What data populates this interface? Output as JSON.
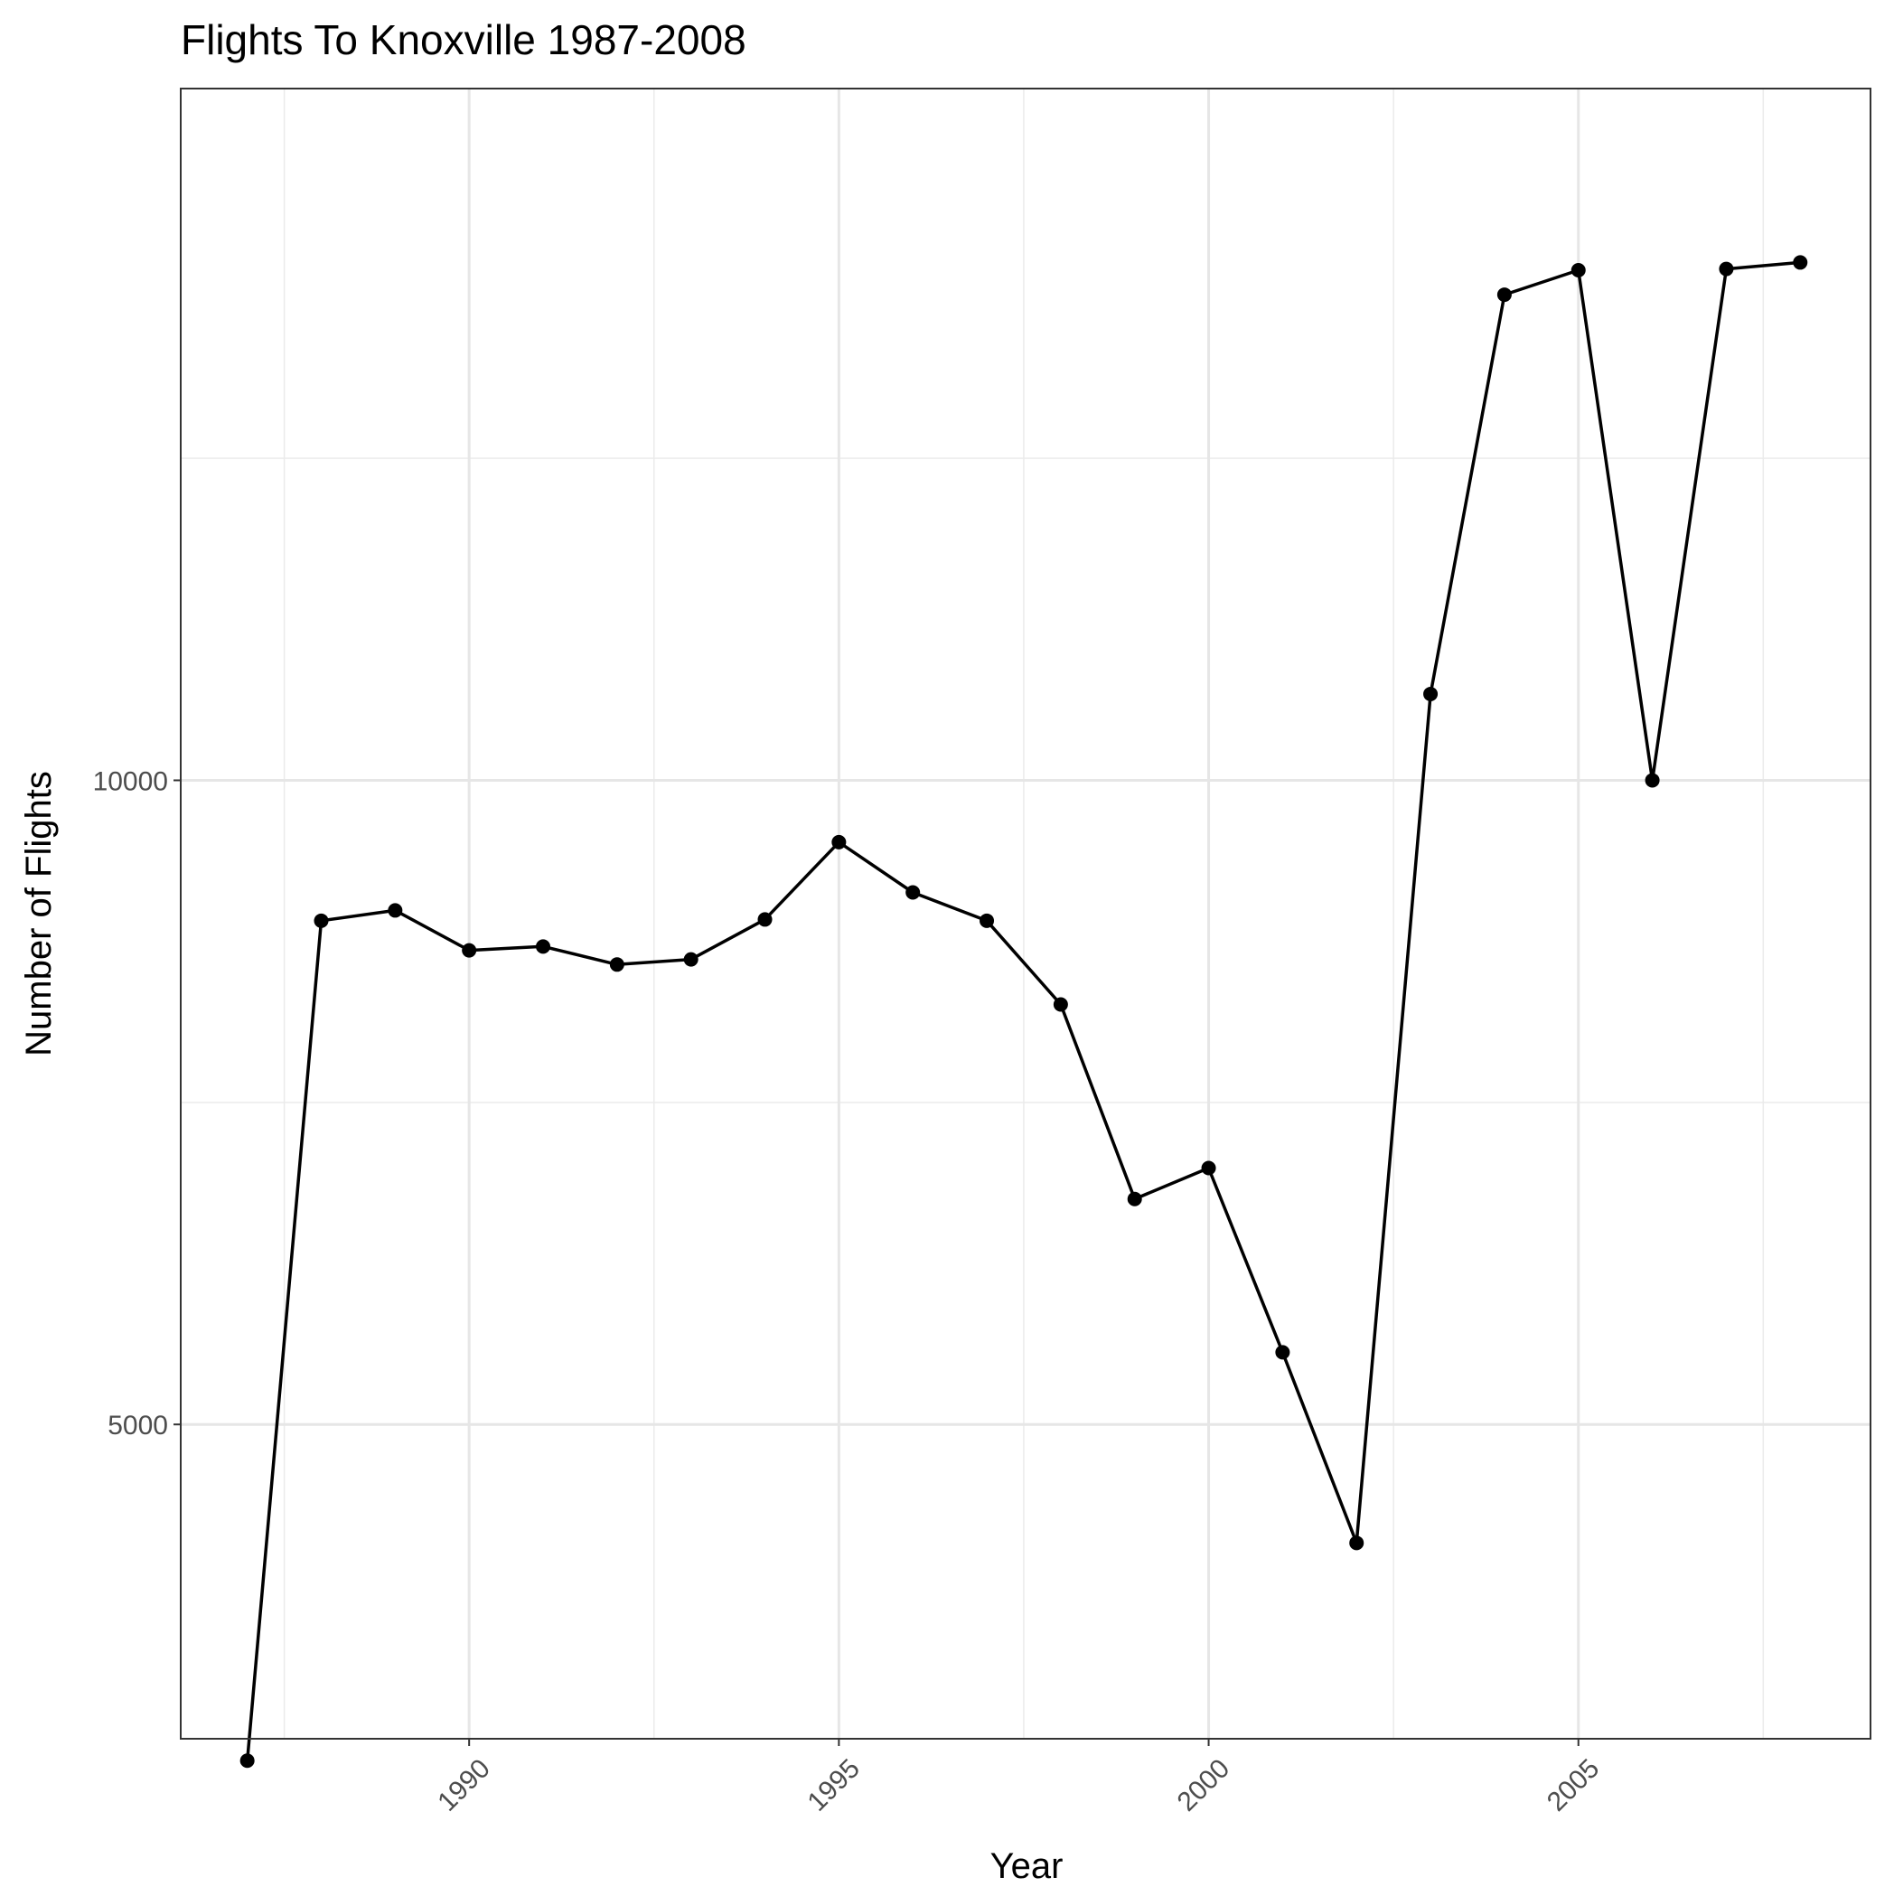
{
  "chart_data": {
    "type": "line",
    "title": "Flights To Knoxville 1987-2008",
    "xlabel": "Year",
    "ylabel": "Number of Flights",
    "xlim": [
      1986.1,
      2008.95
    ],
    "ylim": [
      2560,
      15370
    ],
    "x_ticks": [
      1990,
      1995,
      2000,
      2005
    ],
    "x_minor_ticks": [
      1987.5,
      1992.5,
      1997.5,
      2002.5,
      2007.5
    ],
    "y_ticks": [
      5000,
      10000
    ],
    "y_minor_ticks": [
      2500,
      7500,
      12500
    ],
    "grid": true,
    "legend": "none",
    "series": [
      {
        "x": [
          1987,
          1988,
          1989,
          1990,
          1991,
          1992,
          1993,
          1994,
          1995,
          1996,
          1997,
          1998,
          1999,
          2000,
          2001,
          2002,
          2003,
          2004,
          2005,
          2006,
          2007,
          2008
        ],
        "values": [
          2390,
          8910,
          8990,
          8680,
          8710,
          8570,
          8610,
          8920,
          9520,
          9130,
          8910,
          8260,
          6750,
          6990,
          5560,
          4080,
          10670,
          13770,
          13960,
          10000,
          13970,
          14020
        ],
        "color": "#000000"
      }
    ]
  }
}
